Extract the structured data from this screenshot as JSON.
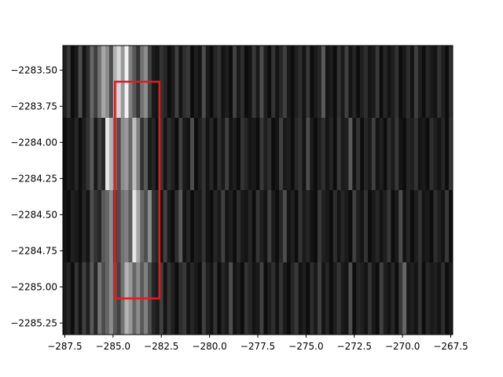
{
  "chart_data": {
    "type": "heatmap",
    "colormap": "gray",
    "title": "",
    "xlabel": "",
    "ylabel": "",
    "xlim": [
      -287.6,
      -267.4
    ],
    "ylim": [
      -2285.33,
      -2283.33
    ],
    "y_inverted": true,
    "x_ticks": [
      -287.5,
      -285.0,
      -282.5,
      -280.0,
      -277.5,
      -275.0,
      -272.5,
      -270.0,
      -267.5
    ],
    "x_tick_labels": [
      "−287.5",
      "−285.0",
      "−282.5",
      "−280.0",
      "−277.5",
      "−275.0",
      "−272.5",
      "−270.0",
      "−267.5"
    ],
    "y_ticks": [
      -2283.5,
      -2283.75,
      -2284.0,
      -2284.25,
      -2284.5,
      -2284.75,
      -2285.0,
      -2285.25
    ],
    "y_tick_labels": [
      "−2283.50",
      "−2283.75",
      "−2284.00",
      "−2284.25",
      "−2284.50",
      "−2284.75",
      "−2285.00",
      "−2285.25"
    ],
    "row_bounds": [
      -2283.33,
      -2283.58,
      -2283.83,
      -2284.08,
      -2284.33
    ],
    "rows": [
      -2283.33,
      -2283.58,
      -2283.83,
      -2284.08,
      -2284.33
    ],
    "row_edges": [
      -2283.33,
      -2283.58,
      -2283.83,
      -2284.08,
      -2284.33,
      -2284.58,
      -2284.83,
      -2285.08,
      -2285.33
    ],
    "band_edges": [
      -2283.33,
      -2283.83,
      -2284.33,
      -2284.83,
      -2285.33
    ],
    "x_start": -287.6,
    "column_width": 0.2,
    "intensity_rows": [
      [
        0.12,
        0.22,
        0.05,
        0.1,
        0.3,
        0.08,
        0.18,
        0.4,
        0.25,
        0.45,
        0.65,
        0.55,
        0.3,
        0.7,
        0.85,
        0.6,
        0.95,
        0.5,
        0.35,
        0.2,
        0.45,
        0.55,
        0.25,
        0.1,
        0.08,
        0.2,
        0.15,
        0.05,
        0.1,
        0.25,
        0.08,
        0.18,
        0.22,
        0.05,
        0.12,
        0.08,
        0.3,
        0.1,
        0.05,
        0.15,
        0.2,
        0.08,
        0.12,
        0.05,
        0.25,
        0.1,
        0.18,
        0.05,
        0.08,
        0.22,
        0.1,
        0.3,
        0.12,
        0.05,
        0.2,
        0.08,
        0.15,
        0.25,
        0.1,
        0.05,
        0.12,
        0.18,
        0.08,
        0.22,
        0.05,
        0.1,
        0.15,
        0.35,
        0.08,
        0.12,
        0.05,
        0.2,
        0.1,
        0.25,
        0.08,
        0.15,
        0.05,
        0.12,
        0.18,
        0.08,
        0.1,
        0.22,
        0.05,
        0.15,
        0.08,
        0.12,
        0.2,
        0.05,
        0.1,
        0.18,
        0.08,
        0.25,
        0.12,
        0.05,
        0.15,
        0.1,
        0.08,
        0.2,
        0.12,
        0.05,
        0.18
      ],
      [
        0.05,
        0.1,
        0.08,
        0.15,
        0.05,
        0.12,
        0.2,
        0.35,
        0.1,
        0.25,
        0.15,
        0.9,
        0.7,
        0.45,
        0.3,
        0.55,
        0.6,
        0.4,
        0.75,
        0.5,
        0.2,
        0.35,
        0.1,
        0.15,
        0.05,
        0.22,
        0.08,
        0.18,
        0.12,
        0.05,
        0.25,
        0.1,
        0.08,
        0.3,
        0.05,
        0.12,
        0.2,
        0.08,
        0.15,
        0.05,
        0.18,
        0.1,
        0.25,
        0.08,
        0.12,
        0.05,
        0.2,
        0.15,
        0.08,
        0.1,
        0.05,
        0.22,
        0.12,
        0.18,
        0.05,
        0.08,
        0.25,
        0.1,
        0.12,
        0.05,
        0.15,
        0.2,
        0.08,
        0.3,
        0.1,
        0.05,
        0.12,
        0.18,
        0.08,
        0.15,
        0.05,
        0.22,
        0.1,
        0.12,
        0.35,
        0.08,
        0.2,
        0.05,
        0.15,
        0.1,
        0.25,
        0.08,
        0.12,
        0.05,
        0.18,
        0.1,
        0.22,
        0.08,
        0.05,
        0.15,
        0.12,
        0.2,
        0.08,
        0.1,
        0.05,
        0.18,
        0.12,
        0.08,
        0.15,
        0.05,
        0.2
      ],
      [
        0.08,
        0.05,
        0.12,
        0.1,
        0.05,
        0.15,
        0.08,
        0.3,
        0.2,
        0.15,
        0.35,
        0.4,
        0.55,
        0.25,
        0.3,
        0.45,
        0.5,
        0.35,
        0.9,
        0.65,
        0.4,
        0.3,
        0.55,
        0.2,
        0.15,
        0.08,
        0.25,
        0.1,
        0.05,
        0.18,
        0.35,
        0.08,
        0.15,
        0.05,
        0.12,
        0.1,
        0.2,
        0.08,
        0.05,
        0.15,
        0.1,
        0.25,
        0.08,
        0.12,
        0.05,
        0.18,
        0.1,
        0.08,
        0.15,
        0.05,
        0.2,
        0.12,
        0.08,
        0.25,
        0.1,
        0.05,
        0.15,
        0.3,
        0.08,
        0.12,
        0.05,
        0.2,
        0.1,
        0.15,
        0.08,
        0.05,
        0.22,
        0.12,
        0.1,
        0.05,
        0.18,
        0.08,
        0.15,
        0.1,
        0.05,
        0.25,
        0.12,
        0.08,
        0.2,
        0.05,
        0.1,
        0.15,
        0.08,
        0.12,
        0.22,
        0.05,
        0.1,
        0.3,
        0.08,
        0.15,
        0.05,
        0.12,
        0.2,
        0.08,
        0.1,
        0.05,
        0.18,
        0.12,
        0.08,
        0.22,
        0.05
      ],
      [
        0.1,
        0.15,
        0.05,
        0.2,
        0.08,
        0.25,
        0.12,
        0.35,
        0.15,
        0.45,
        0.3,
        0.4,
        0.55,
        0.35,
        0.25,
        0.45,
        0.7,
        0.6,
        0.4,
        0.55,
        0.35,
        0.5,
        0.3,
        0.15,
        0.1,
        0.25,
        0.08,
        0.2,
        0.12,
        0.05,
        0.18,
        0.22,
        0.08,
        0.15,
        0.1,
        0.05,
        0.25,
        0.12,
        0.08,
        0.2,
        0.05,
        0.15,
        0.1,
        0.3,
        0.08,
        0.12,
        0.05,
        0.2,
        0.15,
        0.08,
        0.1,
        0.25,
        0.05,
        0.12,
        0.18,
        0.08,
        0.2,
        0.1,
        0.05,
        0.15,
        0.22,
        0.08,
        0.12,
        0.05,
        0.18,
        0.1,
        0.25,
        0.08,
        0.15,
        0.05,
        0.12,
        0.2,
        0.1,
        0.08,
        0.3,
        0.05,
        0.15,
        0.12,
        0.08,
        0.2,
        0.1,
        0.05,
        0.25,
        0.12,
        0.08,
        0.15,
        0.05,
        0.22,
        0.4,
        0.1,
        0.12,
        0.08,
        0.2,
        0.05,
        0.15,
        0.1,
        0.12,
        0.08,
        0.18,
        0.05,
        0.1
      ]
    ],
    "overlay_rectangle": {
      "color": "#e41a1c",
      "x_range": [
        -284.9,
        -282.6
      ],
      "y_range": [
        -2283.58,
        -2285.08
      ]
    }
  }
}
